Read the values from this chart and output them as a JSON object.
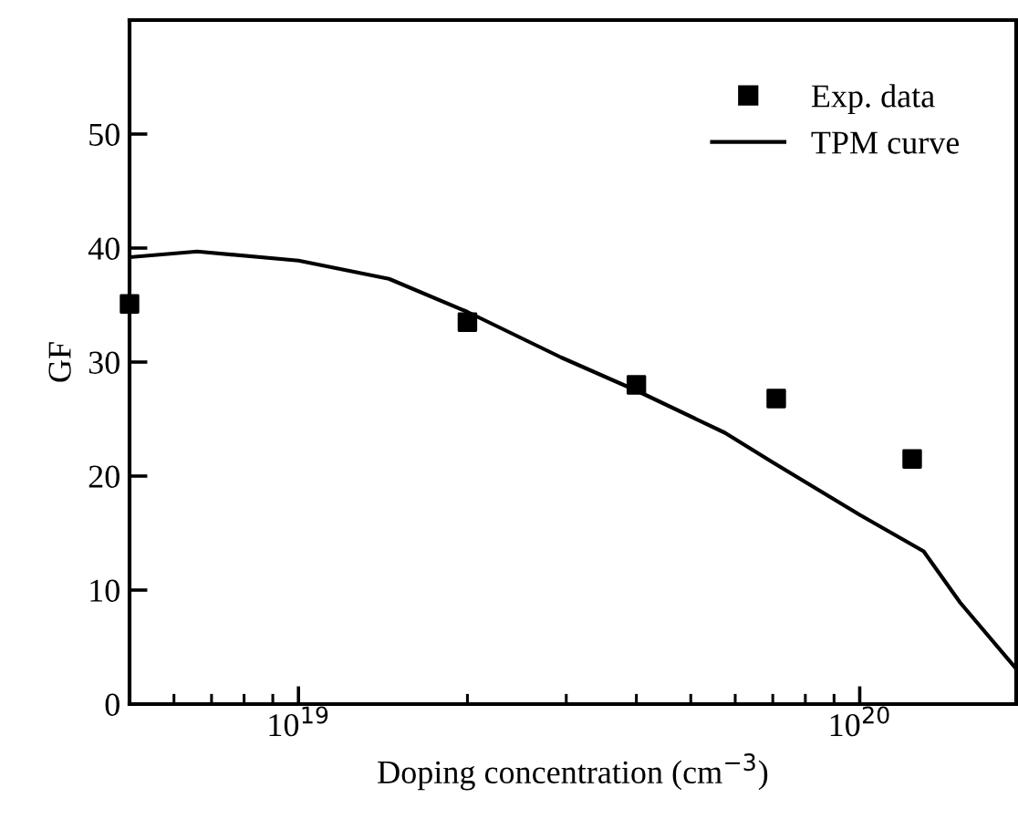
{
  "chart_data": {
    "type": "scatter",
    "xlabel": "Doping concentration (cm$^{−3}$)",
    "ylabel": "GF",
    "log": "x",
    "xlim": [
      5e+18,
      1.9e+20
    ],
    "ylim": [
      0,
      60
    ],
    "xticks": [
      {
        "value": 6e+18,
        "label": null
      },
      {
        "value": 7e+18,
        "label": null
      },
      {
        "value": 8e+18,
        "label": null
      },
      {
        "value": 9e+18,
        "label": null
      },
      {
        "value": 1e+19,
        "label": "10$^{19}$"
      },
      {
        "value": 2e+19,
        "label": null
      },
      {
        "value": 3e+19,
        "label": null
      },
      {
        "value": 4e+19,
        "label": null
      },
      {
        "value": 5e+19,
        "label": null
      },
      {
        "value": 6e+19,
        "label": null
      },
      {
        "value": 7e+19,
        "label": null
      },
      {
        "value": 8e+19,
        "label": null
      },
      {
        "value": 9e+19,
        "label": null
      },
      {
        "value": 1e+20,
        "label": "10$^{20}$"
      }
    ],
    "yticks": [
      0,
      10,
      20,
      30,
      40,
      50
    ],
    "grid": false,
    "legend": "top right",
    "series": [
      {
        "name": "Exp. data",
        "marker": "square",
        "color": "#000000",
        "x": [
          5e+18,
          2e+19,
          4e+19,
          7.1e+19,
          1.24e+20
        ],
        "values": [
          35.1,
          33.5,
          28,
          26.8,
          21.5
        ]
      },
      {
        "name": "TPM curve",
        "type": "line",
        "marker": "none",
        "line_style": "solid",
        "color": "#000000",
        "x": [
          5e+18,
          6.6e+18,
          1e+19,
          1.45e+19,
          2e+19,
          2.94e+19,
          4e+19,
          5.75e+19,
          7e+19,
          1e+20,
          1.3e+20,
          1.51e+20,
          1.9e+20
        ],
        "values": [
          39.2,
          39.7,
          38.9,
          37.3,
          34.4,
          30.4,
          27.5,
          23.8,
          21.2,
          16.6,
          13.4,
          8.9,
          3.1
        ]
      }
    ]
  }
}
